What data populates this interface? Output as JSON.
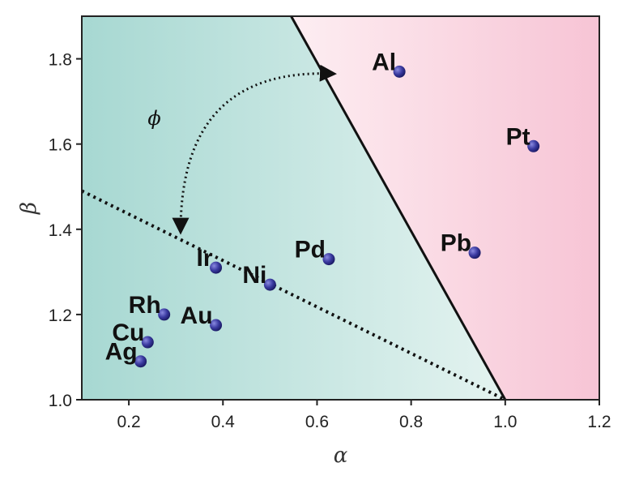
{
  "chart_data": {
    "type": "scatter",
    "title": "",
    "xlabel": "α",
    "ylabel": "β",
    "xlim": [
      0.1,
      1.2
    ],
    "ylim": [
      1.0,
      1.9
    ],
    "x_ticks": [
      "0.2",
      "0.4",
      "0.6",
      "0.8",
      "1.0",
      "1.2"
    ],
    "y_ticks": [
      "1.0",
      "1.2",
      "1.4",
      "1.6",
      "1.8"
    ],
    "grid": false,
    "points": [
      {
        "label": "Ag",
        "x": 0.225,
        "y": 1.09
      },
      {
        "label": "Cu",
        "x": 0.24,
        "y": 1.135
      },
      {
        "label": "Rh",
        "x": 0.275,
        "y": 1.2
      },
      {
        "label": "Au",
        "x": 0.385,
        "y": 1.175
      },
      {
        "label": "Ir",
        "x": 0.385,
        "y": 1.31
      },
      {
        "label": "Ni",
        "x": 0.5,
        "y": 1.27
      },
      {
        "label": "Pd",
        "x": 0.625,
        "y": 1.33
      },
      {
        "label": "Pb",
        "x": 0.935,
        "y": 1.345
      },
      {
        "label": "Pt",
        "x": 1.06,
        "y": 1.595
      },
      {
        "label": "Al",
        "x": 0.775,
        "y": 1.77
      }
    ],
    "boundary_line": {
      "x": [
        0.545,
        1.0
      ],
      "y": [
        1.9,
        1.0
      ]
    },
    "dotted_line": {
      "x": [
        0.1,
        1.0
      ],
      "y": [
        1.49,
        1.0
      ]
    },
    "angle_annotation": "ϕ",
    "colors": {
      "left_region": "#bfe3de",
      "right_region": "#fbd7e2",
      "marker": "#2f2f8f"
    }
  }
}
